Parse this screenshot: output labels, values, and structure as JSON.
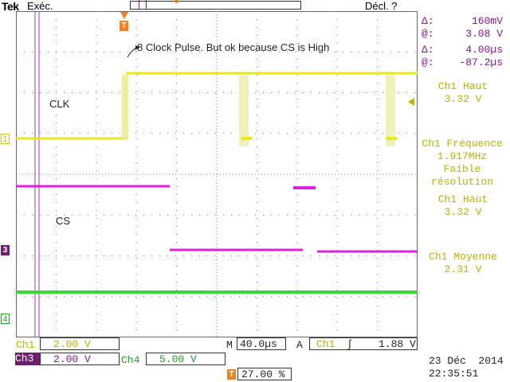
{
  "header": {
    "brand": "Tek",
    "run_status": "Exéc.",
    "trigger_status": "Décl. ?"
  },
  "markers": {
    "trigger_position": "T",
    "ch1": "1",
    "ch3": "3",
    "ch4": "4"
  },
  "annotations": {
    "note": "8 Clock Pulse. But ok because CS is High",
    "clk": "CLK",
    "cs": "CS"
  },
  "cursors": {
    "delta_v_symbol": "Δ:",
    "delta_v": "160mV",
    "at_v_symbol": "@:",
    "at_v": "3.08 V",
    "delta_t_symbol": "Δ:",
    "delta_t": "4.00µs",
    "at_t_symbol": "@:",
    "at_t": "-87.2µs"
  },
  "measurements": [
    {
      "label": "Ch1 Haut",
      "value": "3.32 V"
    },
    {
      "label": "Ch1 Fréquence",
      "value": "1.917MHz",
      "note1": "Faible",
      "note2": "résolution"
    },
    {
      "label": "Ch1 Haut",
      "value": "3.32 V"
    },
    {
      "label": "Ch1 Moyenne",
      "value": "2.31 V"
    }
  ],
  "bottom": {
    "ch1_label": "Ch1",
    "ch1_scale": "2.00 V",
    "ch3_label": "Ch3",
    "ch3_scale": "2.00 V",
    "ch4_label": "Ch4",
    "ch4_scale": "5.00 V",
    "m_label": "M",
    "timebase": "40.0µs",
    "a_label": "A",
    "trig_source": "Ch1",
    "trig_slope": "∫",
    "trig_level": "1.88 V",
    "trig_pos_icon": "T",
    "trig_pos": "27.00 %",
    "date": "23 Déc  2014",
    "time": "22:35:51"
  },
  "colors": {
    "ch1": "#e8e81a",
    "ch1_text": "#b5b500",
    "ch3": "#e020e0",
    "ch3_text": "#8a168a",
    "ch4": "#2ee02e",
    "ch4_text": "#1ea01e",
    "trigger": "#f08020",
    "grid": "#555555"
  }
}
